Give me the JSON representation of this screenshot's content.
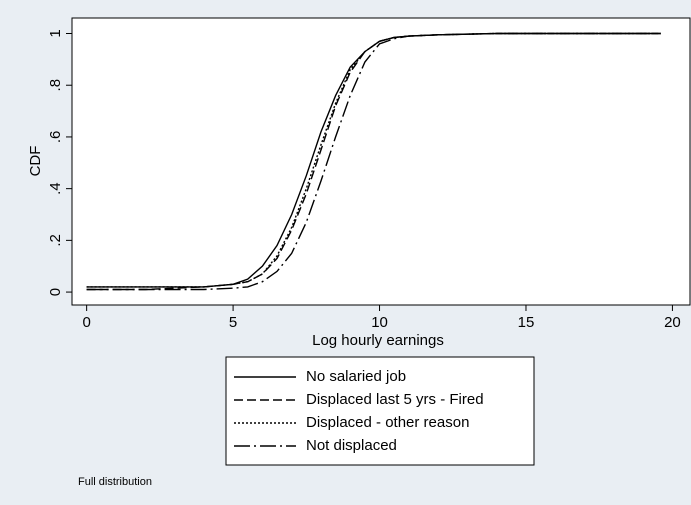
{
  "chart_data": {
    "type": "line",
    "xlabel": "Log hourly earnings",
    "ylabel": "CDF",
    "note": "Full distribution",
    "x": [
      0,
      2,
      4,
      5,
      5.5,
      6,
      6.5,
      7,
      7.5,
      8,
      8.5,
      9,
      9.5,
      10,
      10.5,
      11,
      12,
      14,
      19.6
    ],
    "series": [
      {
        "name": "No salaried job",
        "color": "#000000",
        "dash": "solid",
        "values": [
          0.02,
          0.02,
          0.02,
          0.03,
          0.05,
          0.1,
          0.18,
          0.3,
          0.45,
          0.62,
          0.76,
          0.87,
          0.93,
          0.97,
          0.985,
          0.99,
          0.995,
          1,
          1
        ]
      },
      {
        "name": "Displaced last 5 yrs - Fired",
        "color": "#000000",
        "dash": "dashed",
        "values": [
          0.01,
          0.01,
          0.02,
          0.03,
          0.04,
          0.07,
          0.13,
          0.24,
          0.38,
          0.55,
          0.72,
          0.85,
          0.93,
          0.97,
          0.985,
          0.99,
          0.995,
          1,
          1
        ]
      },
      {
        "name": "Displaced - other reason",
        "color": "#000000",
        "dash": "dotted",
        "values": [
          0.02,
          0.02,
          0.02,
          0.03,
          0.04,
          0.07,
          0.14,
          0.25,
          0.4,
          0.57,
          0.73,
          0.86,
          0.93,
          0.97,
          0.985,
          0.99,
          0.995,
          1,
          1
        ]
      },
      {
        "name": "Not displaced",
        "color": "#000000",
        "dash": "dashdot",
        "values": [
          0.01,
          0.01,
          0.01,
          0.015,
          0.02,
          0.04,
          0.08,
          0.15,
          0.27,
          0.43,
          0.6,
          0.76,
          0.89,
          0.96,
          0.98,
          0.99,
          0.995,
          1,
          1
        ]
      }
    ],
    "xlim": [
      -0.5,
      20.6
    ],
    "xticks": [
      0,
      5,
      10,
      15,
      20
    ],
    "ylim": [
      -0.05,
      1.06
    ],
    "yticks": [
      0,
      {
        "value": 0.2,
        "label": ".2"
      },
      {
        "value": 0.4,
        "label": ".4"
      },
      {
        "value": 0.6,
        "label": ".6"
      },
      {
        "value": 0.8,
        "label": ".8"
      },
      1
    ]
  }
}
